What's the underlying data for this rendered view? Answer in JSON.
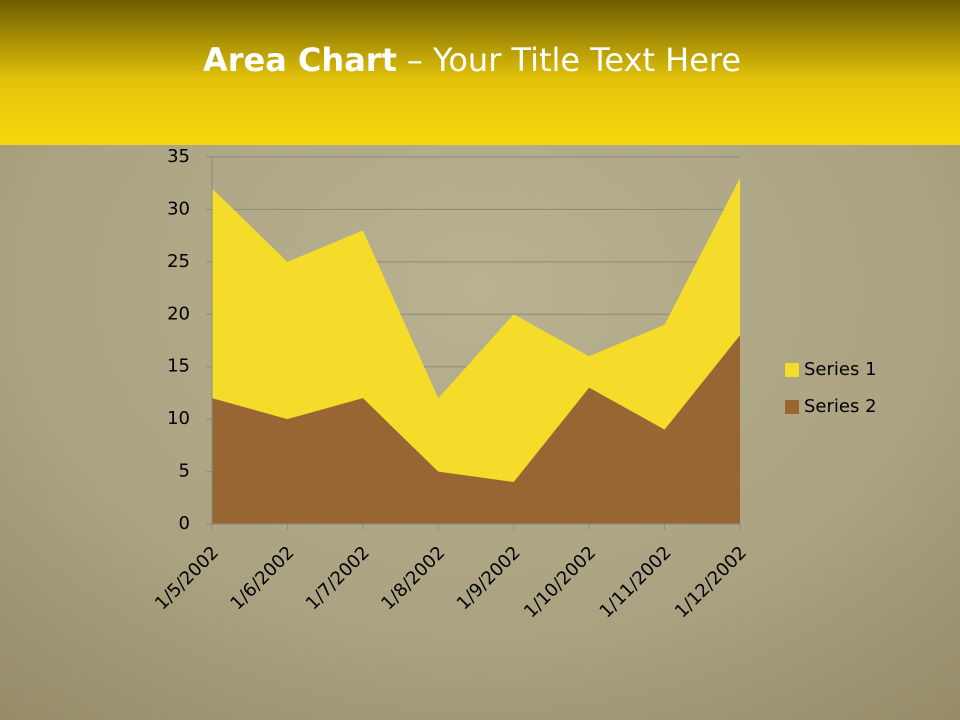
{
  "chart_data": {
    "type": "area",
    "title_bold": "Area Chart",
    "title_rest": "– Your Title Text Here",
    "categories": [
      "1/5/2002",
      "1/6/2002",
      "1/7/2002",
      "1/8/2002",
      "1/9/2002",
      "1/10/2002",
      "1/11/2002",
      "1/12/2002"
    ],
    "series": [
      {
        "name": "Series 1",
        "color": "#f5dc2a",
        "values": [
          32,
          25,
          28,
          12,
          20,
          16,
          19,
          33
        ]
      },
      {
        "name": "Series 2",
        "color": "#996633",
        "values": [
          12,
          10,
          12,
          5,
          4,
          13,
          9,
          18
        ]
      }
    ],
    "ylim": [
      0,
      35
    ],
    "yticks": [
      0,
      5,
      10,
      15,
      20,
      25,
      30,
      35
    ],
    "grid": true,
    "legend": "right"
  }
}
